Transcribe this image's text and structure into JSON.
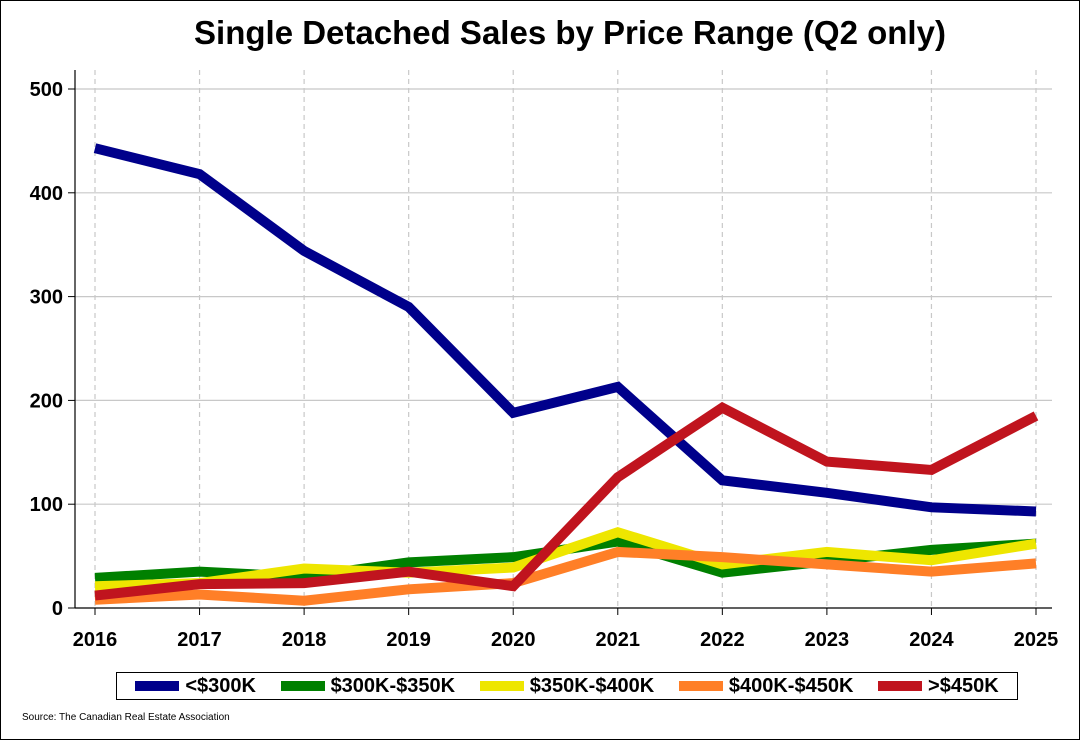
{
  "chart_data": {
    "type": "line",
    "title": "Single Detached Sales by Price Range (Q2 only)",
    "xlabel": "",
    "ylabel": "",
    "x": [
      2016,
      2017,
      2018,
      2019,
      2020,
      2021,
      2022,
      2023,
      2024,
      2025
    ],
    "ylim": [
      0,
      520
    ],
    "yticks": [
      0,
      100,
      200,
      300,
      400,
      500
    ],
    "grid": "vertical dashed, horizontal solid",
    "legend_position": "bottom",
    "series": [
      {
        "name": "<$300K",
        "color": "#00008B",
        "values": [
          443,
          418,
          344,
          290,
          188,
          213,
          123,
          111,
          97,
          93
        ]
      },
      {
        "name": "$300K-$350K",
        "color": "#008000",
        "values": [
          29,
          35,
          30,
          44,
          49,
          64,
          34,
          45,
          56,
          62
        ]
      },
      {
        "name": "$350K-$400K",
        "color": "#EEE600",
        "values": [
          21,
          24,
          38,
          34,
          39,
          73,
          42,
          54,
          46,
          62
        ]
      },
      {
        "name": "$400K-$450K",
        "color": "#FF7F27",
        "values": [
          8,
          13,
          7,
          18,
          24,
          54,
          49,
          42,
          35,
          43
        ]
      },
      {
        "name": ">$450K",
        "color": "#C0141E",
        "values": [
          12,
          23,
          24,
          35,
          21,
          126,
          193,
          141,
          133,
          185
        ]
      }
    ]
  },
  "source": "Source: The Canadian Real Estate Association"
}
